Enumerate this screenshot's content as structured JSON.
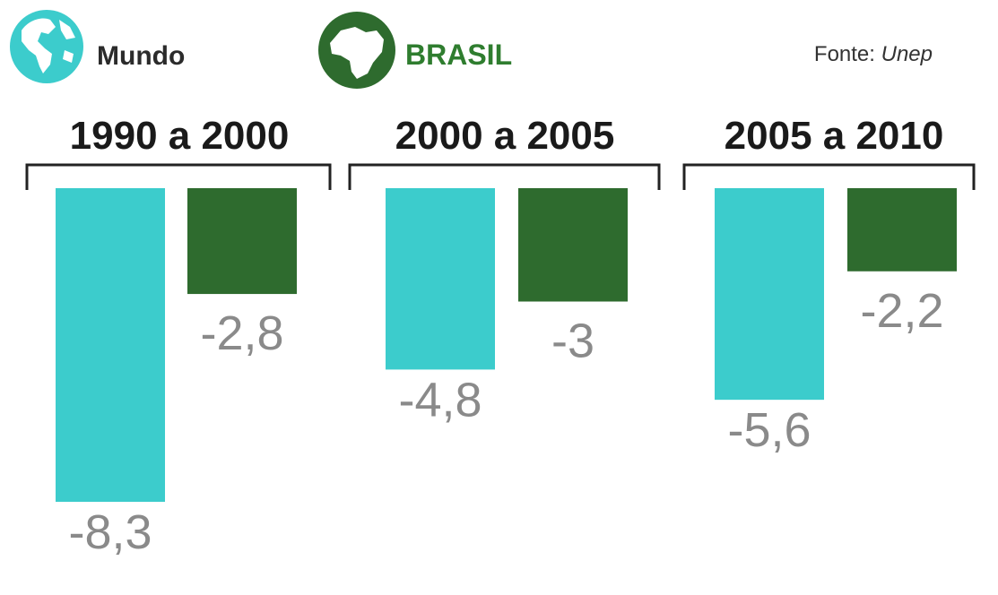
{
  "legend": {
    "world_label": "Mundo",
    "brazil_label": "BRASIL",
    "world_icon": "globe-americas-icon",
    "brazil_icon": "brazil-map-icon"
  },
  "source": {
    "prefix": "Fonte: ",
    "name": "Unep"
  },
  "colors": {
    "world": "#3ccccc",
    "brazil": "#2e6b2e",
    "brazil_text": "#2f7d2f",
    "value_text": "#8a8a8a",
    "bracket": "#222222"
  },
  "chart_data": {
    "type": "bar",
    "categories": [
      "1990 a 2000",
      "2000 a 2005",
      "2005 a 2010"
    ],
    "series": [
      {
        "name": "Mundo",
        "values": [
          -8.3,
          -4.8,
          -5.6
        ],
        "labels": [
          "-8,3",
          "-4,8",
          "-5,6"
        ]
      },
      {
        "name": "BRASIL",
        "values": [
          -2.8,
          -3,
          -2.2
        ],
        "labels": [
          "-2,8",
          "-3",
          "-2,2"
        ]
      }
    ],
    "ylim": [
      -8.3,
      0
    ],
    "grid": false,
    "legend_position": "top-left"
  }
}
